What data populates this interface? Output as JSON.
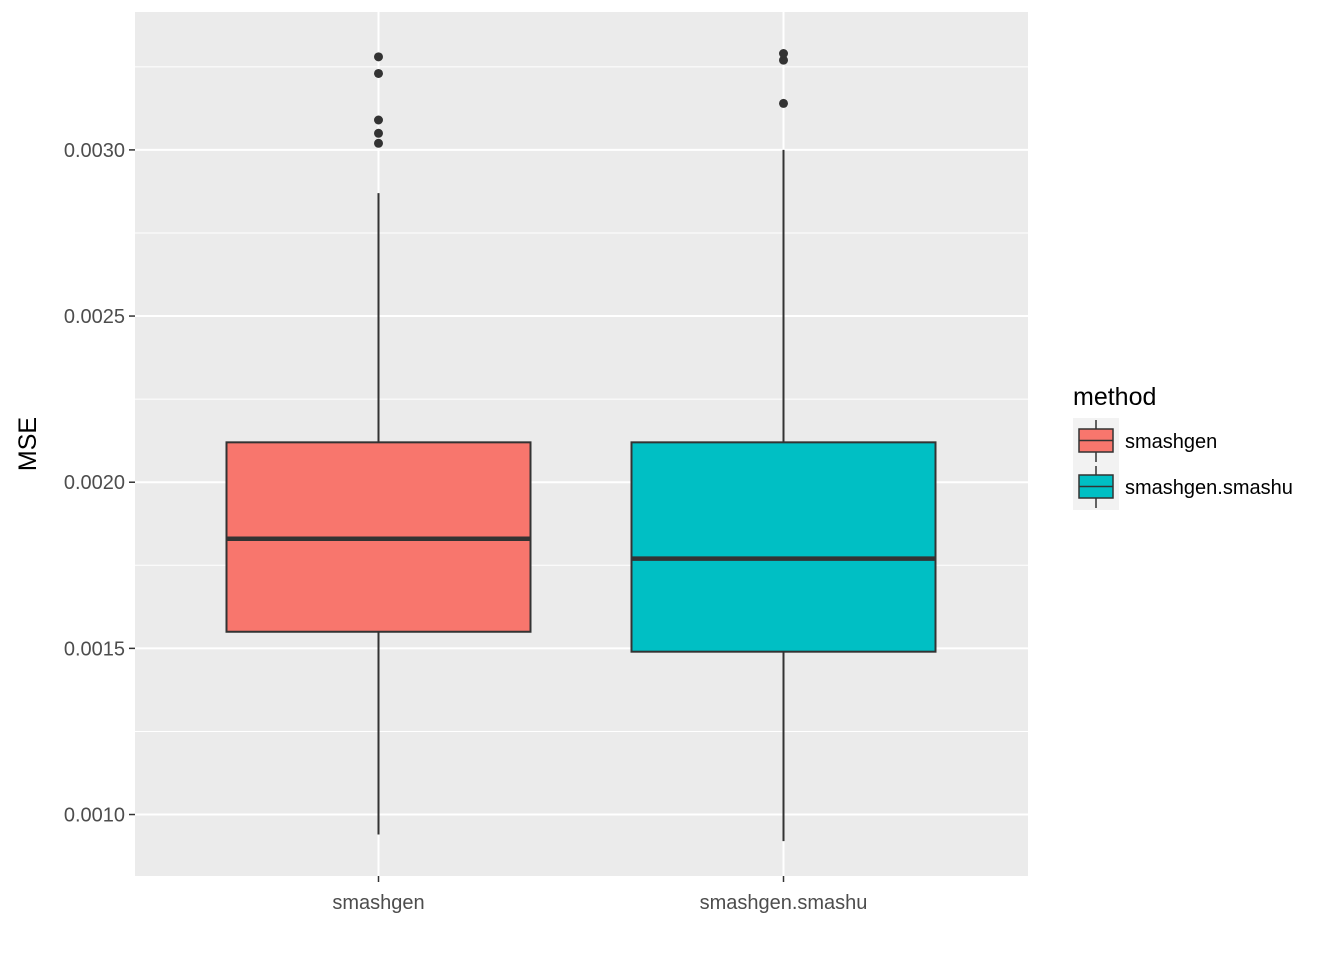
{
  "chart_data": {
    "type": "box",
    "title": "",
    "xlabel": "",
    "ylabel": "MSE",
    "ylim": [
      0.000815,
      0.003415
    ],
    "y_ticks": [
      "0.0010",
      "0.0015",
      "0.0020",
      "0.0025",
      "0.0030"
    ],
    "y_tick_values": [
      0.001,
      0.0015,
      0.002,
      0.0025,
      0.003
    ],
    "grid": true,
    "legend": {
      "title": "method",
      "position": "right"
    },
    "categories": [
      "smashgen",
      "smashgen.smashu"
    ],
    "series": [
      {
        "name": "smashgen",
        "color": "#F8766D",
        "whisker_low": 0.00094,
        "q1": 0.00155,
        "median": 0.00183,
        "q3": 0.00212,
        "whisker_high": 0.00287,
        "outliers": [
          0.00302,
          0.00305,
          0.00309,
          0.00323,
          0.00328
        ]
      },
      {
        "name": "smashgen.smashu",
        "color": "#00BFC4",
        "whisker_low": 0.00092,
        "q1": 0.00149,
        "median": 0.00177,
        "q3": 0.00212,
        "whisker_high": 0.003,
        "outliers": [
          0.00314,
          0.00327,
          0.00329
        ]
      }
    ]
  }
}
